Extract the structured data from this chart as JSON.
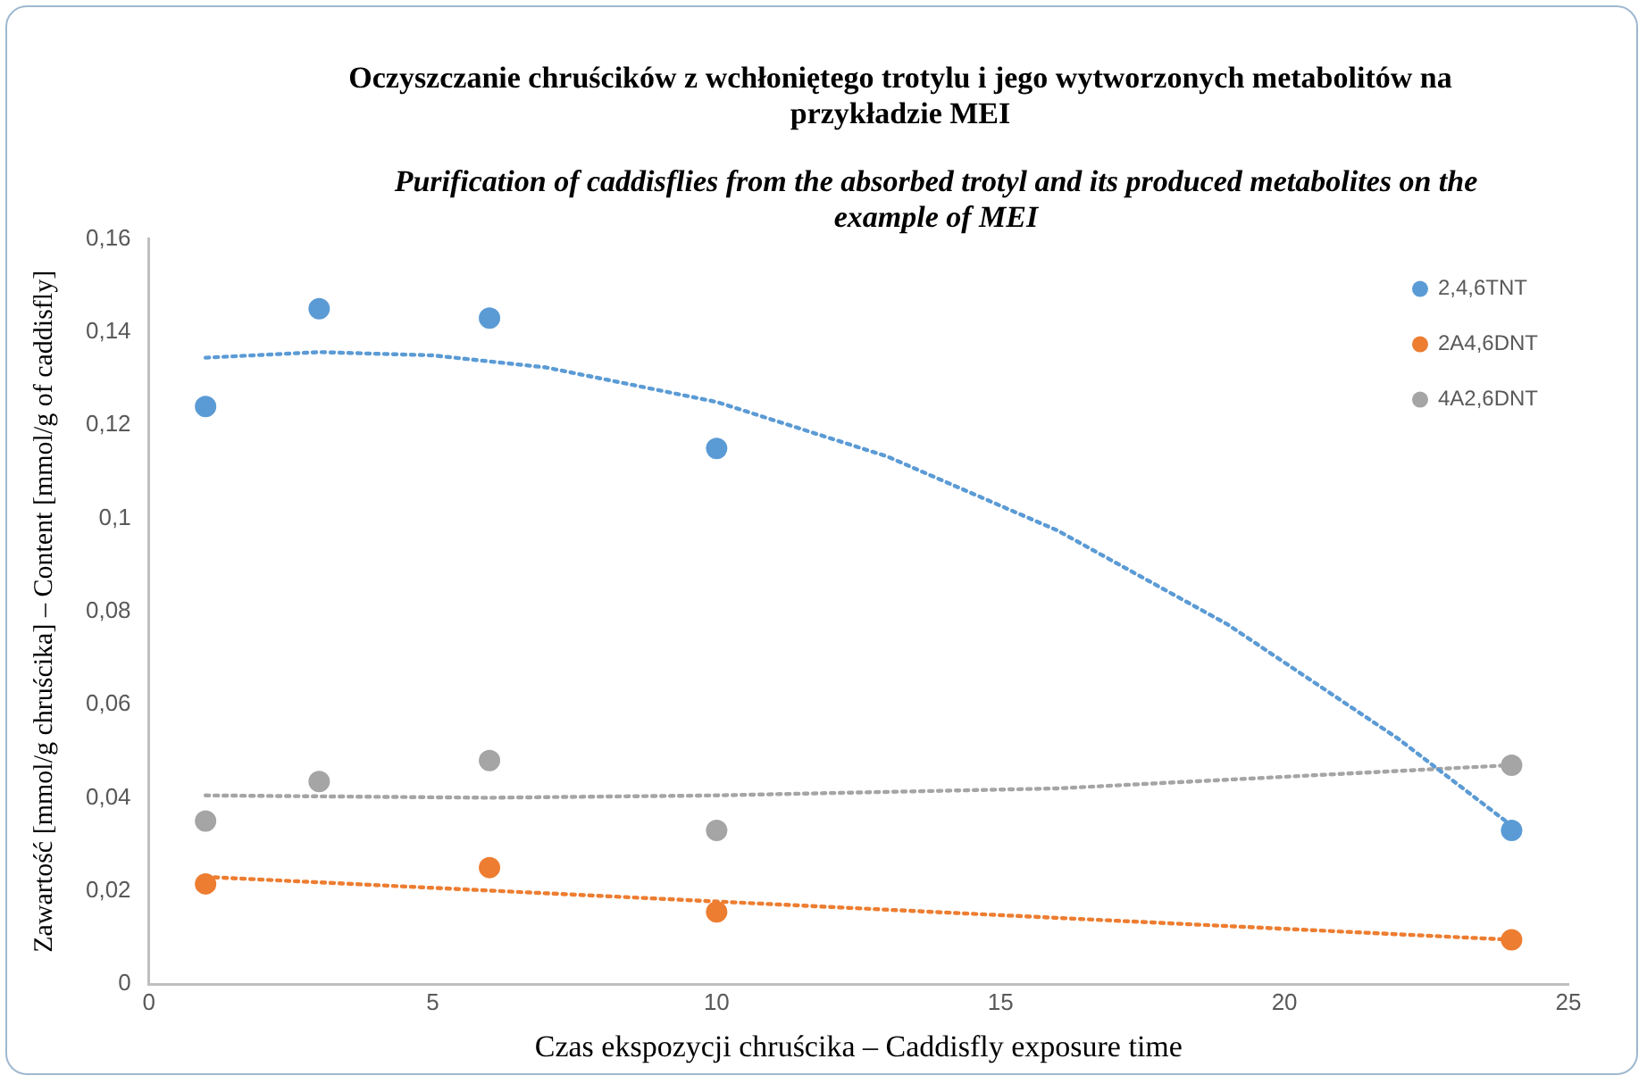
{
  "chart_data": {
    "type": "scatter",
    "title": "Oczyszczanie chruścików z wchłoniętego trotylu i jego wytworzonych metabolitów na przykładzie MEI",
    "subtitle": "Purification of caddisflies from the absorbed trotyl and its produced metabolites on the example of MEI",
    "xlabel": "Czas ekspozycji chruścika – Caddisfly exposure time",
    "ylabel": "Zawartość [mmol/g chruścika] – Content [mmol/g of caddisfly]",
    "x": [
      1,
      3,
      6,
      10,
      24
    ],
    "series": [
      {
        "name": "2,4,6TNT",
        "color": "#5b9bd5",
        "values": [
          0.124,
          0.145,
          0.143,
          0.115,
          0.033
        ]
      },
      {
        "name": "2A4,6DNT",
        "color": "#ed7d31",
        "values": [
          0.0215,
          null,
          0.025,
          0.0155,
          0.0095
        ]
      },
      {
        "name": "4A2,6DNT",
        "color": "#a5a5a5",
        "values": [
          0.035,
          0.0435,
          0.048,
          0.033,
          0.047
        ]
      },
      {
        "type": "line",
        "color": "#5b9bd5",
        "line_style": "dotted",
        "marker": "none",
        "x": [
          1,
          3,
          5,
          7,
          10,
          13,
          16,
          19,
          22,
          24
        ],
        "values": [
          0.1345,
          0.1357,
          0.135,
          0.1324,
          0.125,
          0.1133,
          0.0974,
          0.0772,
          0.0527,
          0.034
        ]
      },
      {
        "type": "line",
        "color": "#ed7d31",
        "line_style": "dotted",
        "marker": "none",
        "x": [
          1,
          24
        ],
        "values": [
          0.023,
          0.0095
        ]
      },
      {
        "type": "line",
        "color": "#a5a5a5",
        "line_style": "dotted",
        "marker": "none",
        "x": [
          1,
          6,
          10,
          16,
          24
        ],
        "values": [
          0.0405,
          0.04,
          0.0405,
          0.042,
          0.047
        ]
      }
    ],
    "xlim": [
      0,
      25
    ],
    "xticks": [
      0,
      5,
      10,
      15,
      20,
      25
    ],
    "ylim": [
      0,
      0.16
    ],
    "yticks": [
      0,
      {
        "value": 0.02,
        "label": "0,02"
      },
      {
        "value": 0.04,
        "label": "0,04"
      },
      {
        "value": 0.06,
        "label": "0,06"
      },
      {
        "value": 0.08,
        "label": "0,08"
      },
      {
        "value": 0.1,
        "label": "0,1"
      },
      {
        "value": 0.12,
        "label": "0,12"
      },
      {
        "value": 0.14,
        "label": "0,14"
      },
      {
        "value": 0.16,
        "label": "0,16"
      }
    ],
    "grid": false,
    "legend": "top right",
    "marker": "circle"
  }
}
